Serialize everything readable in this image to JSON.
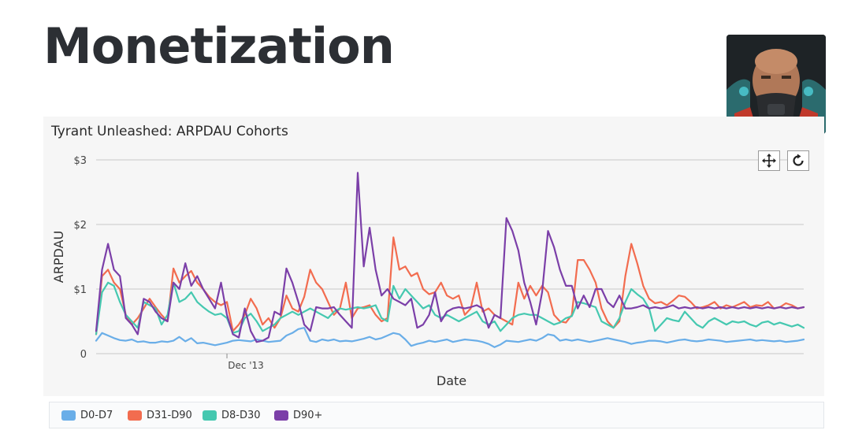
{
  "slide": {
    "title": "Monetization"
  },
  "chart_data": {
    "type": "line",
    "title": "Tyrant Unleashed: ARPDAU Cohorts",
    "xlabel": "Date",
    "ylabel": "ARPDAU",
    "ylim": [
      0,
      3
    ],
    "yticks": [
      {
        "value": 0,
        "label": "0"
      },
      {
        "value": 1,
        "label": "$1"
      },
      {
        "value": 2,
        "label": "$2"
      },
      {
        "value": 3,
        "label": "$3"
      }
    ],
    "xticks": [
      {
        "index": 22,
        "label": "Dec '13"
      }
    ],
    "grid": true,
    "legend_position": "bottom",
    "x": [
      0,
      1,
      2,
      3,
      4,
      5,
      6,
      7,
      8,
      9,
      10,
      11,
      12,
      13,
      14,
      15,
      16,
      17,
      18,
      19,
      20,
      21,
      22,
      23,
      24,
      25,
      26,
      27,
      28,
      29,
      30,
      31,
      32,
      33,
      34,
      35,
      36,
      37,
      38,
      39,
      40,
      41,
      42,
      43,
      44,
      45,
      46,
      47,
      48,
      49,
      50,
      51,
      52,
      53,
      54,
      55,
      56,
      57,
      58,
      59,
      60,
      61,
      62,
      63,
      64,
      65,
      66,
      67,
      68,
      69,
      70,
      71,
      72,
      73,
      74,
      75,
      76,
      77,
      78,
      79,
      80,
      81,
      82,
      83,
      84,
      85,
      86,
      87,
      88,
      89,
      90,
      91,
      92,
      93,
      94,
      95,
      96,
      97,
      98,
      99,
      100,
      101,
      102,
      103,
      104,
      105,
      106,
      107,
      108,
      109,
      110,
      111,
      112,
      113,
      114,
      115,
      116,
      117,
      118,
      119
    ],
    "series": [
      {
        "name": "D0-D7",
        "color": "#6aaee8",
        "values": [
          0.2,
          0.32,
          0.28,
          0.24,
          0.21,
          0.2,
          0.22,
          0.18,
          0.19,
          0.17,
          0.17,
          0.19,
          0.18,
          0.2,
          0.26,
          0.19,
          0.24,
          0.16,
          0.17,
          0.15,
          0.13,
          0.15,
          0.17,
          0.2,
          0.21,
          0.2,
          0.19,
          0.22,
          0.2,
          0.18,
          0.19,
          0.2,
          0.28,
          0.32,
          0.38,
          0.4,
          0.2,
          0.18,
          0.22,
          0.2,
          0.22,
          0.19,
          0.2,
          0.19,
          0.21,
          0.23,
          0.26,
          0.22,
          0.24,
          0.28,
          0.32,
          0.3,
          0.22,
          0.12,
          0.15,
          0.17,
          0.2,
          0.18,
          0.2,
          0.22,
          0.18,
          0.2,
          0.22,
          0.21,
          0.2,
          0.18,
          0.15,
          0.1,
          0.14,
          0.2,
          0.19,
          0.18,
          0.2,
          0.22,
          0.2,
          0.24,
          0.3,
          0.28,
          0.2,
          0.22,
          0.2,
          0.22,
          0.2,
          0.18,
          0.2,
          0.22,
          0.24,
          0.22,
          0.2,
          0.18,
          0.15,
          0.17,
          0.18,
          0.2,
          0.2,
          0.19,
          0.17,
          0.19,
          0.21,
          0.22,
          0.2,
          0.19,
          0.2,
          0.22,
          0.21,
          0.2,
          0.18,
          0.19,
          0.2,
          0.21,
          0.22,
          0.2,
          0.21,
          0.2,
          0.19,
          0.2,
          0.18,
          0.19,
          0.2,
          0.22
        ]
      },
      {
        "name": "D31-D90",
        "color": "#f26c4f",
        "values": [
          0.3,
          1.2,
          1.3,
          1.1,
          1.0,
          0.6,
          0.45,
          0.55,
          0.7,
          0.85,
          0.72,
          0.6,
          0.5,
          1.32,
          1.1,
          1.2,
          1.28,
          1.1,
          1.0,
          0.88,
          0.8,
          0.75,
          0.8,
          0.35,
          0.45,
          0.6,
          0.85,
          0.7,
          0.45,
          0.55,
          0.4,
          0.55,
          0.9,
          0.7,
          0.65,
          0.88,
          1.3,
          1.1,
          1.0,
          0.8,
          0.6,
          0.7,
          1.1,
          0.55,
          0.7,
          0.72,
          0.75,
          0.6,
          0.5,
          0.55,
          1.8,
          1.3,
          1.35,
          1.2,
          1.25,
          1.0,
          0.92,
          0.95,
          1.1,
          0.9,
          0.85,
          0.9,
          0.6,
          0.7,
          1.1,
          0.65,
          0.7,
          0.6,
          0.55,
          0.5,
          0.45,
          1.1,
          0.85,
          1.05,
          0.9,
          1.05,
          0.95,
          0.6,
          0.5,
          0.48,
          0.6,
          1.45,
          1.45,
          1.3,
          1.1,
          0.7,
          0.5,
          0.4,
          0.5,
          1.2,
          1.7,
          1.4,
          1.05,
          0.85,
          0.78,
          0.8,
          0.75,
          0.82,
          0.9,
          0.88,
          0.8,
          0.7,
          0.72,
          0.75,
          0.8,
          0.7,
          0.75,
          0.72,
          0.76,
          0.8,
          0.72,
          0.75,
          0.74,
          0.8,
          0.7,
          0.72,
          0.78,
          0.75,
          0.7,
          0.72
        ]
      },
      {
        "name": "D8-D30",
        "color": "#45c8b0",
        "values": [
          0.3,
          0.95,
          1.1,
          1.05,
          0.8,
          0.6,
          0.5,
          0.4,
          0.8,
          0.75,
          0.7,
          0.45,
          0.6,
          1.1,
          0.8,
          0.85,
          0.95,
          0.8,
          0.72,
          0.65,
          0.6,
          0.62,
          0.55,
          0.32,
          0.35,
          0.55,
          0.62,
          0.5,
          0.35,
          0.4,
          0.45,
          0.55,
          0.6,
          0.65,
          0.6,
          0.65,
          0.7,
          0.65,
          0.6,
          0.55,
          0.65,
          0.7,
          0.68,
          0.7,
          0.72,
          0.7,
          0.72,
          0.75,
          0.55,
          0.5,
          1.05,
          0.85,
          1.0,
          0.9,
          0.8,
          0.7,
          0.75,
          0.6,
          0.55,
          0.6,
          0.55,
          0.5,
          0.55,
          0.6,
          0.65,
          0.5,
          0.45,
          0.5,
          0.35,
          0.45,
          0.55,
          0.6,
          0.62,
          0.6,
          0.6,
          0.55,
          0.5,
          0.45,
          0.48,
          0.55,
          0.58,
          0.8,
          0.78,
          0.75,
          0.72,
          0.5,
          0.45,
          0.4,
          0.55,
          0.8,
          1.0,
          0.92,
          0.85,
          0.7,
          0.35,
          0.45,
          0.55,
          0.52,
          0.5,
          0.65,
          0.55,
          0.45,
          0.4,
          0.5,
          0.55,
          0.5,
          0.45,
          0.5,
          0.48,
          0.5,
          0.45,
          0.42,
          0.48,
          0.5,
          0.45,
          0.48,
          0.45,
          0.42,
          0.45,
          0.4
        ]
      },
      {
        "name": "D90+",
        "color": "#7b3fa8",
        "values": [
          0.35,
          1.3,
          1.7,
          1.3,
          1.2,
          0.55,
          0.45,
          0.3,
          0.85,
          0.8,
          0.65,
          0.55,
          0.5,
          1.1,
          1.0,
          1.4,
          1.05,
          1.2,
          1.0,
          0.85,
          0.7,
          1.1,
          0.6,
          0.3,
          0.25,
          0.7,
          0.35,
          0.18,
          0.2,
          0.25,
          0.65,
          0.6,
          1.32,
          1.1,
          0.8,
          0.45,
          0.35,
          0.72,
          0.7,
          0.7,
          0.72,
          0.6,
          0.5,
          0.4,
          2.8,
          1.35,
          1.95,
          1.3,
          0.9,
          1.0,
          0.85,
          0.8,
          0.75,
          0.85,
          0.4,
          0.45,
          0.6,
          0.95,
          0.5,
          0.65,
          0.7,
          0.72,
          0.7,
          0.72,
          0.75,
          0.7,
          0.4,
          0.6,
          0.55,
          2.1,
          1.9,
          1.6,
          1.1,
          0.8,
          0.45,
          0.95,
          1.9,
          1.65,
          1.3,
          1.05,
          1.05,
          0.7,
          0.9,
          0.72,
          1.0,
          1.0,
          0.8,
          0.72,
          0.9,
          0.7,
          0.7,
          0.72,
          0.75,
          0.7,
          0.72,
          0.7,
          0.72,
          0.75,
          0.7,
          0.72,
          0.7,
          0.72,
          0.7,
          0.72,
          0.7,
          0.72,
          0.7,
          0.72,
          0.7,
          0.72,
          0.7,
          0.72,
          0.7,
          0.72,
          0.7,
          0.72,
          0.7,
          0.72,
          0.7,
          0.72
        ]
      }
    ]
  },
  "toolbar": {
    "pan_icon": "pan-icon",
    "reset_icon": "reset-icon"
  },
  "avatar": {
    "icon": "game-character-avatar"
  }
}
